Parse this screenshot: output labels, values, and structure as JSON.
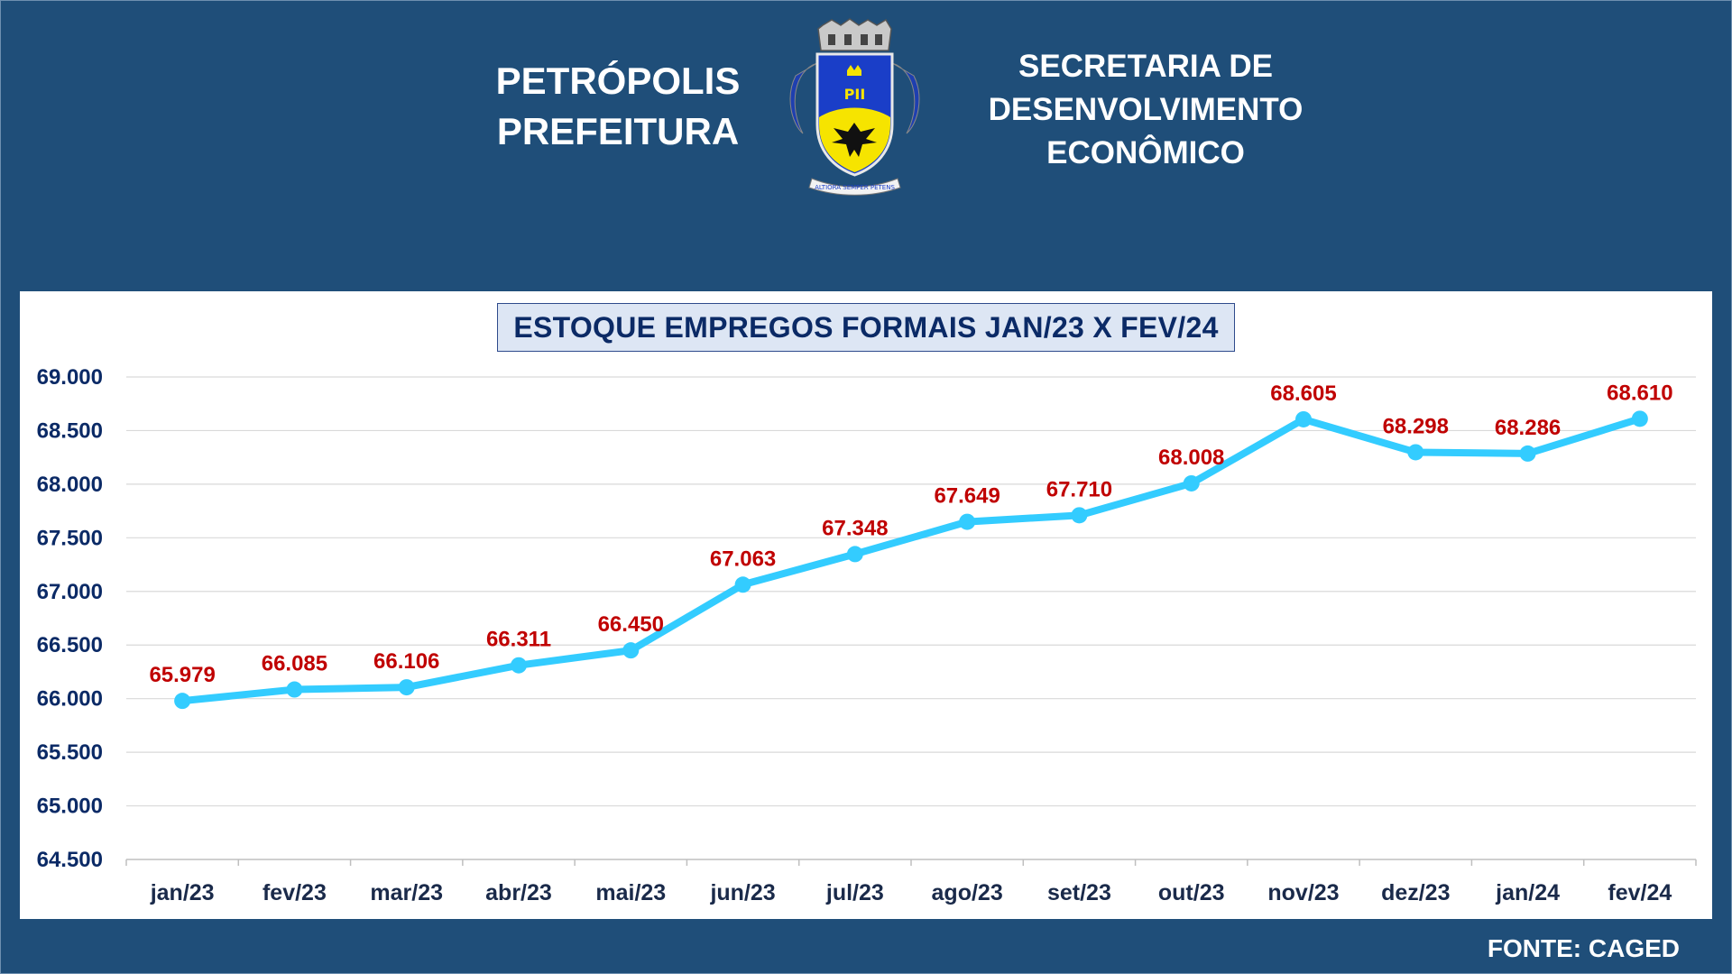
{
  "header": {
    "left_line1": "PETRÓPOLIS",
    "left_line2": "PREFEITURA",
    "right_line1": "SECRETARIA DE",
    "right_line2": "DESENVOLVIMENTO",
    "right_line3": "ECONÔMICO",
    "crest_monogram": "PII",
    "crest_motto": "ALTIORA SEMPER PETENS"
  },
  "source": "FONTE: CAGED",
  "colors": {
    "background": "#1f4e79",
    "line": "#33ccff",
    "data_label": "#c00000",
    "title_text": "#0b2a66"
  },
  "chart_data": {
    "type": "line",
    "title": "ESTOQUE EMPREGOS FORMAIS JAN/23 X FEV/24",
    "categories": [
      "jan/23",
      "fev/23",
      "mar/23",
      "abr/23",
      "mai/23",
      "jun/23",
      "jul/23",
      "ago/23",
      "set/23",
      "out/23",
      "nov/23",
      "dez/23",
      "jan/24",
      "fev/24"
    ],
    "values": [
      65979,
      66085,
      66106,
      66311,
      66450,
      67063,
      67348,
      67649,
      67710,
      68008,
      68605,
      68298,
      68286,
      68610
    ],
    "value_labels": [
      "65.979",
      "66.085",
      "66.106",
      "66.311",
      "66.450",
      "67.063",
      "67.348",
      "67.649",
      "67.710",
      "68.008",
      "68.605",
      "68.298",
      "68.286",
      "68.610"
    ],
    "y_ticks": [
      64500,
      65000,
      65500,
      66000,
      66500,
      67000,
      67500,
      68000,
      68500,
      69000
    ],
    "y_tick_labels": [
      "64.500",
      "65.000",
      "65.500",
      "66.000",
      "66.500",
      "67.000",
      "67.500",
      "68.000",
      "68.500",
      "69.000"
    ],
    "ylim": [
      64500,
      69000
    ],
    "grid": true,
    "legend": "none"
  }
}
